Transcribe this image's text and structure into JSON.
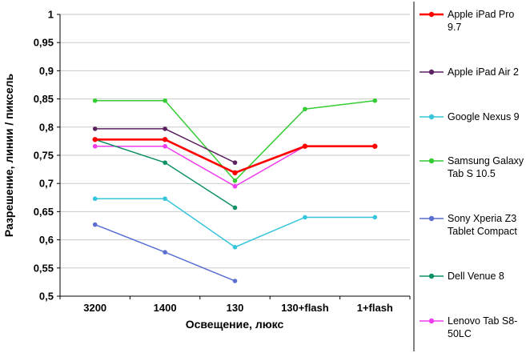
{
  "chart_data": {
    "type": "line",
    "title": "",
    "xlabel": "Освещение, люкс",
    "ylabel": "Разрешение, линии / пиксель",
    "categories": [
      "3200",
      "1400",
      "130",
      "130+flash",
      "1+flash"
    ],
    "ylim": [
      0.5,
      1.0
    ],
    "ytick_step": 0.05,
    "ytick_labels": [
      "0,5",
      "0,55",
      "0,6",
      "0,65",
      "0,7",
      "0,75",
      "0,8",
      "0,85",
      "0,9",
      "0,95",
      "1"
    ],
    "grid": "horizontal",
    "grid_color": "#c9c9c9",
    "axis_color": "#000000",
    "legend_position": "right",
    "series": [
      {
        "name": "Apple iPad Pro 9.7",
        "color": "#ff0000",
        "line_width": 2.6,
        "values": [
          0.778,
          0.778,
          0.719,
          0.766,
          0.766
        ]
      },
      {
        "name": "Apple iPad Air 2",
        "color": "#5c2160",
        "line_width": 1.5,
        "values": [
          0.797,
          0.797,
          0.737,
          null,
          null
        ]
      },
      {
        "name": "Google Nexus 9",
        "color": "#35c6dd",
        "line_width": 1.5,
        "values": [
          0.673,
          0.673,
          0.587,
          0.64,
          0.64
        ]
      },
      {
        "name": "Samsung Galaxy Tab S 10.5",
        "color": "#33cc33",
        "line_width": 1.5,
        "values": [
          0.847,
          0.847,
          0.705,
          0.832,
          0.847
        ]
      },
      {
        "name": "Sony Xperia Z3 Tablet Compact",
        "color": "#5b6fd0",
        "line_width": 1.5,
        "values": [
          0.627,
          0.578,
          0.527,
          null,
          null
        ]
      },
      {
        "name": "Dell Venue 8",
        "color": "#0f9168",
        "line_width": 1.5,
        "values": [
          0.778,
          0.737,
          0.657,
          null,
          null
        ]
      },
      {
        "name": "Lenovo Tab S8-50LC",
        "color": "#ee3cee",
        "line_width": 1.5,
        "values": [
          0.766,
          0.766,
          0.695,
          0.766,
          0.766
        ]
      }
    ]
  }
}
